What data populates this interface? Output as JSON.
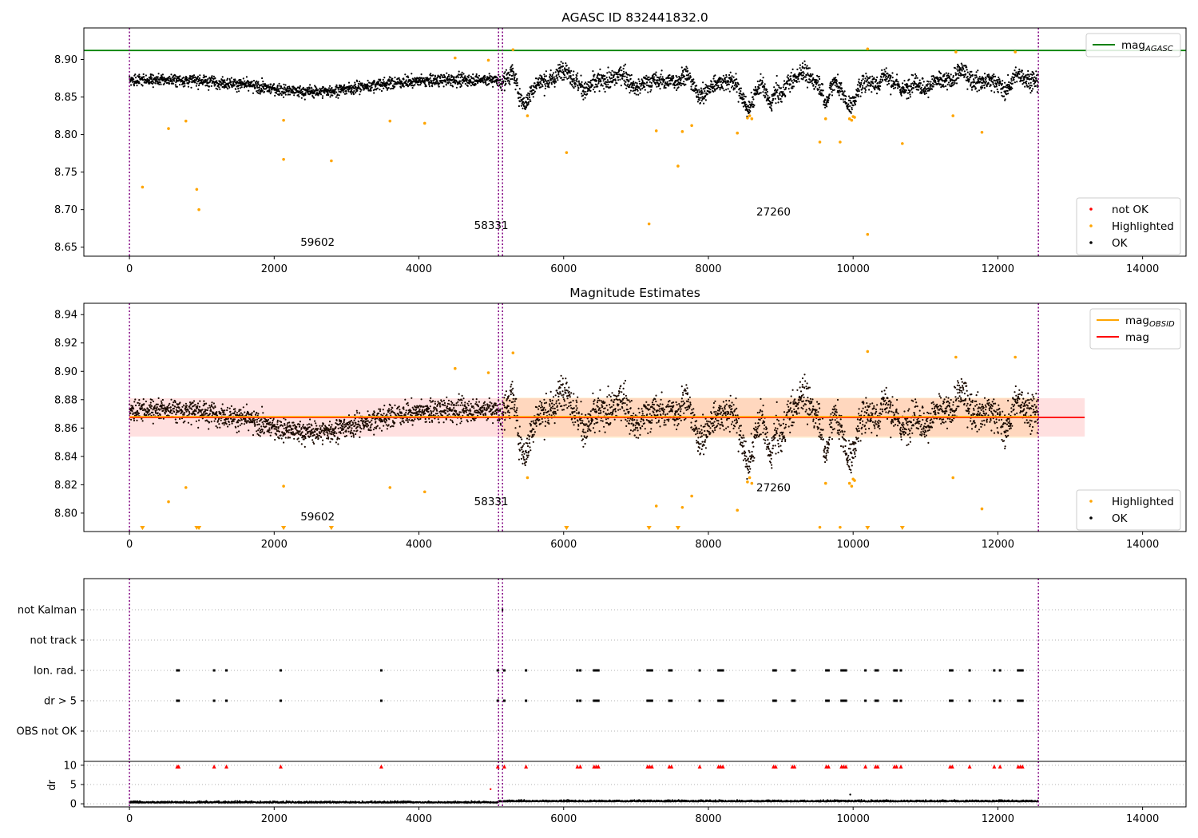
{
  "chart_data": [
    {
      "type": "scatter",
      "title": "AGASC ID 832441832.0",
      "xlim": [
        -630,
        14600
      ],
      "ylim": [
        8.638,
        8.942
      ],
      "x_ticks": [
        "0",
        "2000",
        "4000",
        "6000",
        "8000",
        "10000",
        "12000",
        "14000"
      ],
      "y_ticks": [
        "8.65",
        "8.70",
        "8.75",
        "8.80",
        "8.85",
        "8.90"
      ],
      "y_tick_values": [
        8.65,
        8.7,
        8.75,
        8.8,
        8.85,
        8.9
      ],
      "reference_line": {
        "name": "mag_AGASC",
        "value": 8.912,
        "color": "#008000"
      },
      "obsid_boundaries": [
        0,
        5100,
        5155,
        12560
      ],
      "annotations": [
        {
          "text": "59602",
          "x": 2600,
          "y": 8.652
        },
        {
          "text": "58331",
          "x": 5000,
          "y": 8.674
        },
        {
          "text": "27260",
          "x": 8900,
          "y": 8.692
        }
      ],
      "legend_top": {
        "position": "top-right",
        "entries": [
          {
            "label": "mag",
            "sub": "AGASC",
            "color": "#008000"
          }
        ]
      },
      "legend_bottom": {
        "position": "bottom-right",
        "entries": [
          {
            "label": "not OK",
            "color": "#ff0000"
          },
          {
            "label": "Highlighted",
            "color": "#ffa500"
          },
          {
            "label": "OK",
            "color": "#000000"
          }
        ]
      },
      "highlighted_points": [
        [
          180,
          8.73
        ],
        [
          540,
          8.808
        ],
        [
          780,
          8.818
        ],
        [
          930,
          8.727
        ],
        [
          960,
          8.7
        ],
        [
          2130,
          8.819
        ],
        [
          2130,
          8.767
        ],
        [
          2790,
          8.765
        ],
        [
          3600,
          8.818
        ],
        [
          4080,
          8.815
        ],
        [
          4500,
          8.902
        ],
        [
          5500,
          8.825
        ],
        [
          6040,
          8.776
        ],
        [
          7180,
          8.681
        ],
        [
          7280,
          8.805
        ],
        [
          7580,
          8.758
        ],
        [
          7640,
          8.804
        ],
        [
          7770,
          8.812
        ],
        [
          8400,
          8.802
        ],
        [
          9540,
          8.79
        ],
        [
          9620,
          8.821
        ],
        [
          9820,
          8.79
        ],
        [
          10020,
          8.823
        ],
        [
          10200,
          8.914
        ],
        [
          10200,
          8.667
        ],
        [
          10680,
          8.788
        ],
        [
          11380,
          8.825
        ],
        [
          11420,
          8.91
        ],
        [
          11780,
          8.803
        ],
        [
          12240,
          8.91
        ],
        [
          8540,
          8.822
        ],
        [
          8570,
          8.825
        ],
        [
          8600,
          8.821
        ],
        [
          9950,
          8.821
        ],
        [
          9980,
          8.819
        ],
        [
          10000,
          8.824
        ],
        [
          5300,
          8.913
        ],
        [
          4960,
          8.899
        ]
      ]
    },
    {
      "type": "scatter",
      "title": "Magnitude Estimates",
      "xlim": [
        -630,
        14600
      ],
      "ylim": [
        8.787,
        8.948
      ],
      "x_ticks": [
        "0",
        "2000",
        "4000",
        "6000",
        "8000",
        "10000",
        "12000",
        "14000"
      ],
      "y_ticks": [
        "8.80",
        "8.82",
        "8.84",
        "8.86",
        "8.88",
        "8.90",
        "8.92",
        "8.94"
      ],
      "y_tick_values": [
        8.8,
        8.82,
        8.84,
        8.86,
        8.88,
        8.9,
        8.92,
        8.94
      ],
      "mean_mag": 8.8675,
      "band_lower": 8.854,
      "band_upper": 8.881,
      "band_xmax": 13200,
      "obsid_boundaries": [
        0,
        5100,
        5155,
        12560
      ],
      "annotations": [
        {
          "text": "59602",
          "x": 2600,
          "y": 8.795
        },
        {
          "text": "58331",
          "x": 5000,
          "y": 8.8055
        },
        {
          "text": "27260",
          "x": 8900,
          "y": 8.8155
        }
      ],
      "legend_top": {
        "position": "top-right",
        "entries": [
          {
            "label": "mag",
            "sub": "OBSID",
            "color": "#ffa500"
          },
          {
            "label": "mag",
            "sub": "",
            "color": "#ff0000"
          }
        ]
      },
      "legend_bottom": {
        "position": "bottom-right",
        "entries": [
          {
            "label": "Highlighted",
            "color": "#ffa500"
          },
          {
            "label": "OK",
            "color": "#000000"
          }
        ]
      }
    },
    {
      "type": "scatter",
      "title": "",
      "xlim": [
        -630,
        14600
      ],
      "flag_labels": [
        "not Kalman",
        "not track",
        "Ion. rad.",
        "dr > 5",
        "OBS not OK"
      ],
      "dr_ticks": [
        "0",
        "5",
        "10"
      ],
      "dr_ylim": [
        -0.8,
        11
      ],
      "x_ticks": [
        "0",
        "2000",
        "4000",
        "6000",
        "8000",
        "10000",
        "12000",
        "14000"
      ],
      "ylabel": "dr",
      "obsid_boundaries": [
        0,
        5100,
        5155,
        12560
      ],
      "flag_events": [
        660,
        680,
        1170,
        1340,
        2090,
        3480,
        5090,
        5180,
        5480,
        6190,
        6230,
        6420,
        6450,
        6480,
        7160,
        7190,
        7220,
        7460,
        7490,
        7880,
        8140,
        8170,
        8200,
        8900,
        8930,
        9160,
        9190,
        9630,
        9660,
        9840,
        9870,
        9900,
        10170,
        10310,
        10340,
        10570,
        10600,
        10660,
        11340,
        11370,
        11610,
        11950,
        12030,
        12280,
        12310,
        12340
      ]
    }
  ]
}
